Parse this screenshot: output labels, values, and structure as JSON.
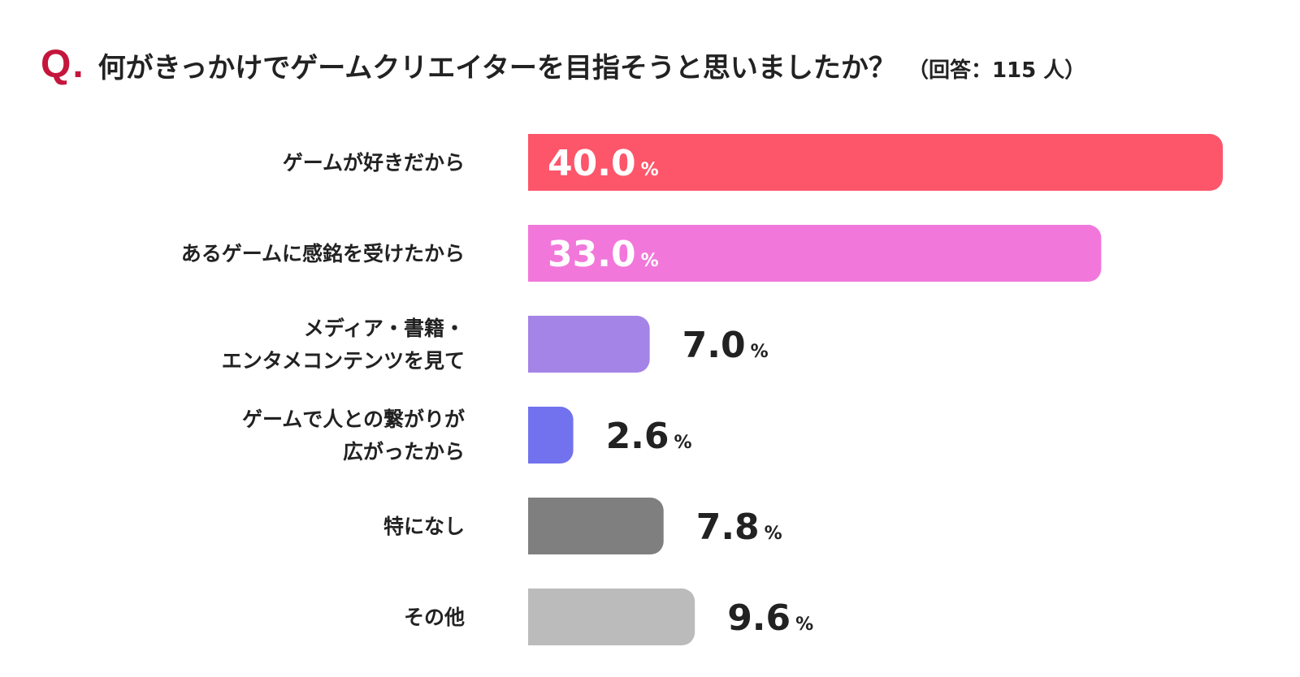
{
  "header": {
    "q_mark": "Q.",
    "question": "何がきっかけでゲームクリエイターを目指そうと思いましたか？",
    "respondents": "（回答：115 人）"
  },
  "chart_data": {
    "type": "bar",
    "orientation": "horizontal",
    "unit": "%",
    "categories": [
      [
        "ゲームが好きだから"
      ],
      [
        "あるゲームに感銘を受けたから"
      ],
      [
        "メディア・書籍・",
        "エンタメコンテンツを見て"
      ],
      [
        "ゲームで人との繋がりが",
        "広がったから"
      ],
      [
        "特になし"
      ],
      [
        "その他"
      ]
    ],
    "values": [
      40.0,
      33.0,
      7.0,
      2.6,
      7.8,
      9.6
    ],
    "value_labels": [
      "40.0",
      "33.0",
      "7.0",
      "2.6",
      "7.8",
      "9.6"
    ],
    "colors": [
      "#fd566a",
      "#f277db",
      "#a484e6",
      "#7272ef",
      "#7f7f7f",
      "#bbbbbb"
    ],
    "label_inside": [
      true,
      true,
      false,
      false,
      false,
      false
    ],
    "xlim": [
      0,
      40.0
    ],
    "grid": false,
    "legend": "none"
  }
}
